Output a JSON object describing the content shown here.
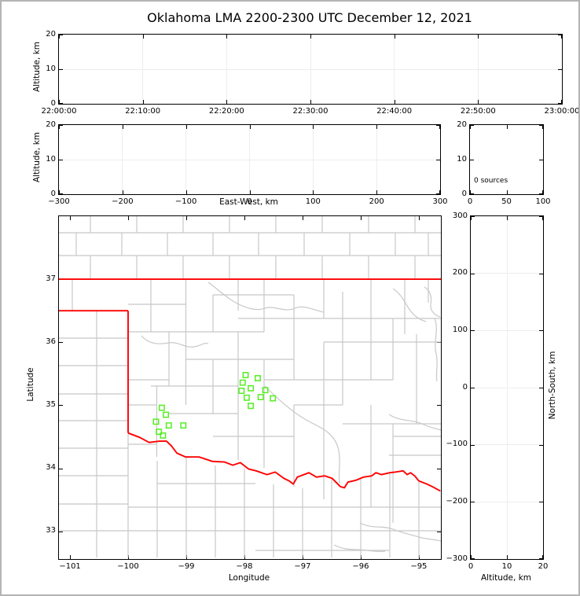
{
  "title": "Oklahoma LMA 2200-2300 UTC December 12, 2021",
  "colors": {
    "background": "#ffffff",
    "frame_border": "#b4b4b4",
    "axis": "#000000",
    "gridline": "#ededed",
    "county_line": "#c8c8c8",
    "state_border": "#ff0000",
    "station_marker": "#55ee22"
  },
  "axis_labels": {
    "altitude": "Altitude, km",
    "east_west": "East-West, km",
    "longitude": "Longitude",
    "latitude": "Latitude",
    "north_south": "North-South, km"
  },
  "annotations": {
    "histogram_sources": "0 sources"
  },
  "chart_data": [
    {
      "id": "time_height",
      "type": "scatter",
      "xlabel": "",
      "ylabel": "Altitude, km",
      "x_tick_labels": [
        "22:00:00",
        "22:10:00",
        "22:20:00",
        "22:30:00",
        "22:40:00",
        "22:50:00",
        "23:00:00"
      ],
      "y_tick_labels": [
        "20",
        "10",
        "0"
      ],
      "ylim": [
        0,
        20
      ],
      "points": []
    },
    {
      "id": "eastwest_height",
      "type": "scatter",
      "xlabel": "East-West, km",
      "ylabel": "Altitude, km",
      "x_tick_labels": [
        "−300",
        "−200",
        "−100",
        "0",
        "100",
        "200",
        "300"
      ],
      "y_tick_labels": [
        "20",
        "10",
        "0"
      ],
      "xlim": [
        -300,
        300
      ],
      "ylim": [
        0,
        20
      ],
      "points": []
    },
    {
      "id": "height_histogram",
      "type": "line",
      "xlabel": "",
      "ylabel": "",
      "x_tick_labels": [
        "0",
        "50",
        "100"
      ],
      "y_tick_labels": [
        "20",
        "10",
        "0"
      ],
      "xlim": [
        0,
        100
      ],
      "ylim": [
        0,
        20
      ],
      "annotation": "0 sources",
      "points": []
    },
    {
      "id": "plan_view_map",
      "type": "scatter",
      "xlabel": "Longitude",
      "ylabel": "Latitude",
      "x_tick_labels": [
        "−101",
        "−100",
        "−99",
        "−98",
        "−97",
        "−96",
        "−95"
      ],
      "x_tick_values": [
        -101,
        -100,
        -99,
        -98,
        -97,
        -96,
        -95
      ],
      "y_tick_labels": [
        "37",
        "36",
        "35",
        "34",
        "33"
      ],
      "y_tick_values": [
        37,
        36,
        35,
        34,
        33
      ],
      "xlim": [
        -101.19,
        -94.62
      ],
      "ylim": [
        32.56,
        38.0
      ],
      "stations_lonlat": [
        [
          -97.98,
          35.48
        ],
        [
          -97.77,
          35.43
        ],
        [
          -98.03,
          35.36
        ],
        [
          -98.05,
          35.23
        ],
        [
          -97.89,
          35.27
        ],
        [
          -97.64,
          35.24
        ],
        [
          -97.96,
          35.12
        ],
        [
          -97.72,
          35.13
        ],
        [
          -97.51,
          35.11
        ],
        [
          -97.89,
          34.99
        ],
        [
          -99.42,
          34.96
        ],
        [
          -99.35,
          34.85
        ],
        [
          -99.52,
          34.74
        ],
        [
          -99.3,
          34.68
        ],
        [
          -99.05,
          34.68
        ],
        [
          -99.47,
          34.58
        ],
        [
          -99.4,
          34.52
        ]
      ],
      "state_border_segments": [
        [
          [
            -101.19,
            37.0
          ],
          [
            -94.62,
            37.0
          ]
        ],
        [
          [
            -101.19,
            36.5
          ],
          [
            -100.0,
            36.5
          ]
        ],
        [
          [
            -100.0,
            36.5
          ],
          [
            -100.0,
            34.56
          ]
        ]
      ],
      "red_river": [
        [
          -100.0,
          34.56
        ],
        [
          -99.8,
          34.49
        ],
        [
          -99.64,
          34.41
        ],
        [
          -99.46,
          34.43
        ],
        [
          -99.34,
          34.43
        ],
        [
          -99.26,
          34.36
        ],
        [
          -99.16,
          34.24
        ],
        [
          -99.01,
          34.18
        ],
        [
          -98.78,
          34.18
        ],
        [
          -98.55,
          34.11
        ],
        [
          -98.34,
          34.1
        ],
        [
          -98.2,
          34.05
        ],
        [
          -98.07,
          34.09
        ],
        [
          -97.93,
          33.99
        ],
        [
          -97.8,
          33.96
        ],
        [
          -97.61,
          33.9
        ],
        [
          -97.47,
          33.94
        ],
        [
          -97.32,
          33.84
        ],
        [
          -97.23,
          33.8
        ],
        [
          -97.16,
          33.75
        ],
        [
          -97.09,
          33.86
        ],
        [
          -96.89,
          33.93
        ],
        [
          -96.76,
          33.86
        ],
        [
          -96.62,
          33.88
        ],
        [
          -96.49,
          33.84
        ],
        [
          -96.35,
          33.71
        ],
        [
          -96.28,
          33.69
        ],
        [
          -96.22,
          33.78
        ],
        [
          -96.08,
          33.81
        ],
        [
          -95.95,
          33.86
        ],
        [
          -95.81,
          33.88
        ],
        [
          -95.74,
          33.93
        ],
        [
          -95.64,
          33.9
        ],
        [
          -95.5,
          33.93
        ],
        [
          -95.41,
          33.94
        ],
        [
          -95.27,
          33.96
        ],
        [
          -95.2,
          33.9
        ],
        [
          -95.14,
          33.93
        ],
        [
          -95.07,
          33.88
        ],
        [
          -95.0,
          33.8
        ],
        [
          -94.86,
          33.75
        ],
        [
          -94.77,
          33.71
        ],
        [
          -94.63,
          33.64
        ]
      ]
    },
    {
      "id": "northsouth_height",
      "type": "scatter",
      "xlabel": "Altitude, km",
      "ylabel": "North-South, km",
      "x_tick_labels": [
        "0",
        "10",
        "20"
      ],
      "y_tick_labels": [
        "300",
        "200",
        "100",
        "0",
        "−100",
        "−200",
        "−300"
      ],
      "xlim": [
        0,
        20
      ],
      "ylim": [
        -300,
        300
      ],
      "points": []
    }
  ]
}
